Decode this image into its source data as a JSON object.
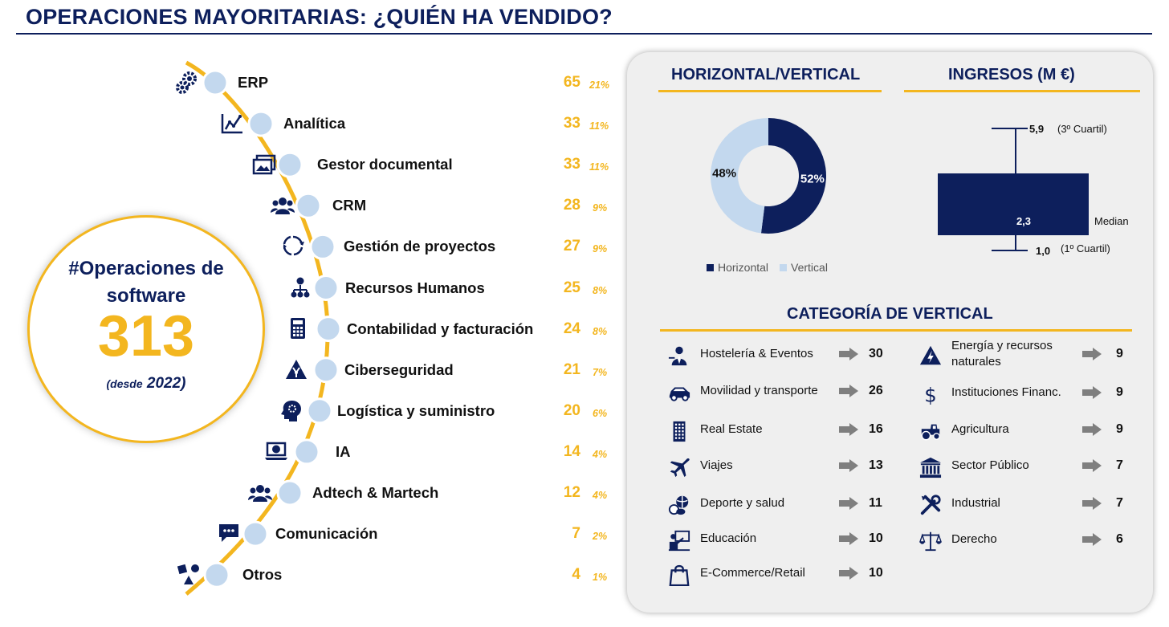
{
  "title": "OPERACIONES MAYORITARIAS: ¿QUIÉN HA VENDIDO?",
  "summary": {
    "line1": "#Operaciones de",
    "line2": "software",
    "total": "313",
    "since_word": "(desde",
    "since_year": "2022)"
  },
  "colors": {
    "navy": "#0d1f5c",
    "yellow": "#f3b61f",
    "light_blue": "#c3d8ee",
    "arrow_gray": "#7f7f7f"
  },
  "chart_data": [
    {
      "type": "bar",
      "categories": [
        "ERP",
        "Analítica",
        "Gestor documental",
        "CRM",
        "Gestión de proyectos",
        "Recursos Humanos",
        "Contabilidad y facturación",
        "Ciberseguridad",
        "Logística y suministro",
        "IA",
        "Adtech & Martech",
        "Comunicación",
        "Otros"
      ],
      "values": [
        65,
        33,
        33,
        28,
        27,
        25,
        24,
        21,
        20,
        14,
        12,
        7,
        4
      ],
      "percent_labels": [
        "21%",
        "11%",
        "11%",
        "9%",
        "9%",
        "8%",
        "8%",
        "7%",
        "6%",
        "4%",
        "4%",
        "2%",
        "1%"
      ],
      "icons": [
        "gears-icon",
        "line-chart-icon",
        "image-gallery-icon",
        "user-group-icon",
        "cycle-arrows-icon",
        "org-chart-icon",
        "calculator-icon",
        "hazard-triangle-icon",
        "head-gears-icon",
        "laptop-globe-icon",
        "user-group-icon",
        "chat-bubble-icon",
        "shapes-icon"
      ]
    },
    {
      "type": "pie",
      "title": "HORIZONTAL/VERTICAL",
      "categories": [
        "Horizontal",
        "Vertical"
      ],
      "values": [
        52,
        48
      ],
      "labels": [
        "52%",
        "48%"
      ],
      "colors": [
        "#0d1f5c",
        "#c3d8ee"
      ],
      "legend": "bottom"
    },
    {
      "type": "box",
      "title": "INGRESOS (M €)",
      "q1": 1.0,
      "median": 2.3,
      "q3": 5.9,
      "labels": {
        "q3": "5,9",
        "q3_note": "(3º Cuartil)",
        "median": "2,3",
        "median_note": "Median",
        "q1": "1,0",
        "q1_note": "(1º Cuartil)"
      }
    },
    {
      "type": "table",
      "title": "CATEGORÍA DE VERTICAL",
      "left": [
        {
          "label": "Hostelería & Eventos",
          "value": 30,
          "icon": "waiter-icon"
        },
        {
          "label": "Movilidad y transporte",
          "value": 26,
          "icon": "car-icon"
        },
        {
          "label": "Real Estate",
          "value": 16,
          "icon": "building-icon"
        },
        {
          "label": "Viajes",
          "value": 13,
          "icon": "airplane-icon"
        },
        {
          "label": "Deporte y salud",
          "value": 11,
          "icon": "sports-balls-icon"
        },
        {
          "label": "Educación",
          "value": 10,
          "icon": "teacher-board-icon"
        },
        {
          "label": "E-Commerce/Retail",
          "value": 10,
          "icon": "shopping-bag-icon"
        }
      ],
      "right": [
        {
          "label": "Energía y recursos naturales",
          "value": 9,
          "icon": "energy-icon"
        },
        {
          "label": "Instituciones Financ.",
          "value": 9,
          "icon": "dollar-icon"
        },
        {
          "label": "Agricultura",
          "value": 9,
          "icon": "tractor-icon"
        },
        {
          "label": "Sector Público",
          "value": 7,
          "icon": "government-building-icon"
        },
        {
          "label": "Industrial",
          "value": 7,
          "icon": "tools-icon"
        },
        {
          "label": "Derecho",
          "value": 6,
          "icon": "scales-icon"
        }
      ]
    }
  ]
}
